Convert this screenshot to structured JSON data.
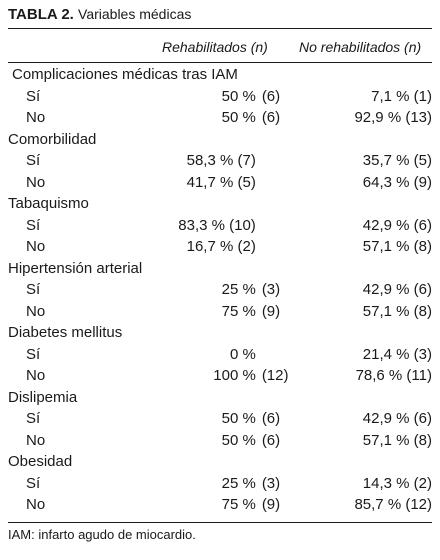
{
  "table": {
    "label": "TABLA 2.",
    "caption": "Variables médicas",
    "columns": [
      "Rehabilitados (n)",
      "No rehabilitados (n)"
    ],
    "groups": [
      {
        "name": "Complicaciones médicas tras IAM",
        "rows": [
          {
            "label": "Sí",
            "reh_pct": "50 %",
            "reh_n": "(6)",
            "noreh": "7,1 % (1)"
          },
          {
            "label": "No",
            "reh_pct": "50 %",
            "reh_n": "(6)",
            "noreh": "92,9 % (13)"
          }
        ]
      },
      {
        "name": "Comorbilidad",
        "rows": [
          {
            "label": "Sí",
            "reh_pct": "58,3 % (7)",
            "reh_n": "",
            "noreh": "35,7 % (5)"
          },
          {
            "label": "No",
            "reh_pct": "41,7 % (5)",
            "reh_n": "",
            "noreh": "64,3 % (9)"
          }
        ]
      },
      {
        "name": "Tabaquismo",
        "rows": [
          {
            "label": "Sí",
            "reh_pct": "83,3 % (10)",
            "reh_n": "",
            "noreh": "42,9 % (6)"
          },
          {
            "label": "No",
            "reh_pct": "16,7 % (2)",
            "reh_n": "",
            "noreh": "57,1 % (8)"
          }
        ]
      },
      {
        "name": "Hipertensión arterial",
        "rows": [
          {
            "label": "Sí",
            "reh_pct": "25 %",
            "reh_n": "(3)",
            "noreh": "42,9 % (6)"
          },
          {
            "label": "No",
            "reh_pct": "75 %",
            "reh_n": "(9)",
            "noreh": "57,1 % (8)"
          }
        ]
      },
      {
        "name": "Diabetes mellitus",
        "rows": [
          {
            "label": "Sí",
            "reh_pct": "0 %",
            "reh_n": "",
            "noreh": "21,4 % (3)"
          },
          {
            "label": "No",
            "reh_pct": "100 %",
            "reh_n": "(12)",
            "noreh": "78,6 % (11)"
          }
        ]
      },
      {
        "name": "Dislipemia",
        "rows": [
          {
            "label": "Sí",
            "reh_pct": "50 %",
            "reh_n": "(6)",
            "noreh": "42,9 % (6)"
          },
          {
            "label": "No",
            "reh_pct": "50 %",
            "reh_n": "(6)",
            "noreh": "57,1 % (8)"
          }
        ]
      },
      {
        "name": "Obesidad",
        "rows": [
          {
            "label": "Sí",
            "reh_pct": "25 %",
            "reh_n": "(3)",
            "noreh": "14,3 % (2)"
          },
          {
            "label": "No",
            "reh_pct": "75 %",
            "reh_n": "(9)",
            "noreh": "85,7 % (12)"
          }
        ]
      }
    ],
    "footnote": "IAM: infarto agudo de miocardio."
  }
}
